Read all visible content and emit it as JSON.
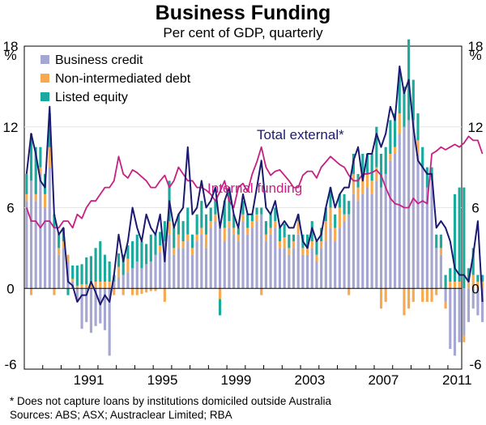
{
  "chart_data": {
    "type": "bar",
    "title": "Business Funding",
    "subtitle": "Per cent of GDP, quarterly",
    "yunit": "%",
    "ylim": [
      -6,
      18
    ],
    "yticks": [
      "18",
      "12",
      "6",
      "0",
      "-6"
    ],
    "xlim": [
      1988,
      2011.75
    ],
    "xticks": [
      "1991",
      "1995",
      "1999",
      "2003",
      "2007",
      "2011"
    ],
    "start_year": 1988,
    "quarters_per_year": 4,
    "legend": [
      {
        "name": "Business credit",
        "color": "#a6a6d2"
      },
      {
        "name": "Non-intermediated debt",
        "color": "#f6a94e"
      },
      {
        "name": "Listed equity",
        "color": "#1aa99c"
      }
    ],
    "line_labels": {
      "total": "Total external*",
      "internal": "Internal funding"
    },
    "line_colors": {
      "total": "#1c1a70",
      "internal": "#c71f84"
    },
    "series": [
      {
        "name": "Business credit",
        "values": [
          6.5,
          8.0,
          6.5,
          8.5,
          6.0,
          9.0,
          4.5,
          2.5,
          3.0,
          2.0,
          0.5,
          -1.0,
          -3.0,
          -2.5,
          -3.3,
          -2.8,
          -2.6,
          -3.1,
          -5.0,
          0.5,
          0.8,
          1.0,
          1.2,
          1.5,
          2.0,
          1.5,
          1.8,
          2.0,
          2.5,
          2.7,
          3.5,
          4.0,
          2.5,
          3.0,
          3.0,
          3.5,
          2.5,
          3.5,
          4.0,
          3.0,
          4.5,
          5.0,
          4.5,
          3.5,
          4.5,
          4.0,
          3.5,
          5.0,
          4.0,
          4.5,
          5.0,
          5.5,
          3.5,
          4.0,
          4.5,
          3.0,
          3.0,
          2.5,
          3.0,
          4.0,
          2.5,
          2.5,
          3.0,
          2.0,
          3.0,
          3.5,
          4.5,
          3.5,
          4.5,
          5.0,
          5.5,
          7.0,
          6.5,
          7.0,
          7.5,
          7.0,
          8.0,
          7.5,
          8.5,
          9.5,
          10.0,
          11.5,
          12.0,
          12.5,
          12.5,
          10.0,
          9.0,
          7.5,
          8.0,
          3.0,
          2.5,
          -1.0,
          -4.5,
          -5.0,
          -4.0,
          -3.5,
          -2.5,
          -1.5,
          -2.0,
          -2.5
        ]
      },
      {
        "name": "Non-intermediated debt",
        "values": [
          0.5,
          -0.5,
          0.5,
          0.5,
          1.0,
          1.5,
          -0.5,
          0.5,
          0.5,
          0.5,
          0.2,
          0.2,
          0.3,
          0.3,
          0.4,
          0.5,
          0.5,
          0.5,
          0.5,
          -0.5,
          0.8,
          -0.5,
          1.0,
          -0.5,
          -0.5,
          -0.4,
          -0.3,
          -0.2,
          -0.2,
          0.5,
          -1.0,
          1.0,
          0.5,
          1.0,
          0.5,
          0.5,
          0.5,
          0.5,
          0.5,
          1.0,
          0.5,
          0.5,
          -0.8,
          1.0,
          0.5,
          0.5,
          0.5,
          0.5,
          0.5,
          0.5,
          0.5,
          -0.5,
          0.5,
          0.5,
          0.5,
          0.5,
          0.8,
          0.5,
          0.5,
          1.0,
          0.5,
          0.5,
          0.5,
          0.5,
          0.5,
          1.5,
          1.5,
          1.0,
          1.5,
          0.5,
          -0.5,
          1.5,
          1.0,
          1.5,
          1.0,
          1.0,
          1.0,
          -1.5,
          -1.0,
          0.5,
          0.5,
          1.5,
          -2.0,
          -1.5,
          -1.0,
          1.0,
          -1.0,
          -1.0,
          -1.0,
          -0.5,
          0.5,
          -0.5,
          0.5,
          0.5,
          0.5,
          -0.5,
          0.5,
          1.0,
          0.5,
          0.5
        ]
      },
      {
        "name": "Listed equity",
        "values": [
          1.5,
          3.5,
          3.5,
          1.5,
          1.5,
          2.5,
          1.0,
          1.0,
          1.0,
          -0.5,
          1.0,
          1.5,
          1.5,
          2.0,
          2.0,
          2.5,
          3.0,
          2.0,
          1.5,
          0.5,
          1.0,
          1.5,
          1.0,
          2.0,
          2.0,
          2.0,
          1.5,
          2.0,
          1.5,
          1.0,
          1.5,
          3.0,
          1.5,
          1.5,
          1.5,
          2.0,
          1.0,
          1.5,
          2.0,
          1.5,
          1.0,
          1.0,
          -1.2,
          2.0,
          2.5,
          1.0,
          0.5,
          1.0,
          1.0,
          0.5,
          0.5,
          0.5,
          1.0,
          1.0,
          1.0,
          1.0,
          1.0,
          1.0,
          0.5,
          0.5,
          1.0,
          1.0,
          1.5,
          1.0,
          1.0,
          1.0,
          1.5,
          1.0,
          1.0,
          1.5,
          1.0,
          1.5,
          1.0,
          1.5,
          1.5,
          2.0,
          3.0,
          2.5,
          2.0,
          2.5,
          2.5,
          3.0,
          3.0,
          6.0,
          3.0,
          2.0,
          1.5,
          1.5,
          1.0,
          1.0,
          1.0,
          1.0,
          1.0,
          6.5,
          7.0,
          7.5,
          1.0,
          2.0,
          0.5,
          0.5
        ]
      },
      {
        "name": "Total external*",
        "values": [
          8.5,
          11.5,
          10.0,
          8.0,
          7.5,
          13.5,
          5.5,
          4.0,
          4.5,
          0.5,
          0.2,
          -1.0,
          -0.5,
          -0.5,
          0.5,
          -0.3,
          -1.2,
          -0.5,
          -1.0,
          1.0,
          4.0,
          2.0,
          3.5,
          6.0,
          4.5,
          3.5,
          5.5,
          4.5,
          4.0,
          5.5,
          2.0,
          6.5,
          4.5,
          5.5,
          6.0,
          10.5,
          5.5,
          6.0,
          8.0,
          6.0,
          6.5,
          7.5,
          4.5,
          6.5,
          7.5,
          5.5,
          4.5,
          7.0,
          5.5,
          5.5,
          7.5,
          9.5,
          6.0,
          5.5,
          6.5,
          4.5,
          5.0,
          4.5,
          4.5,
          5.5,
          3.5,
          3.0,
          4.5,
          3.5,
          4.0,
          6.0,
          7.5,
          6.0,
          7.0,
          7.5,
          7.5,
          9.5,
          10.5,
          8.0,
          10.0,
          10.0,
          11.5,
          10.5,
          11.5,
          13.5,
          12.5,
          16.5,
          14.5,
          15.5,
          12.0,
          9.5,
          9.0,
          8.5,
          8.5,
          4.5,
          5.0,
          4.5,
          3.5,
          1.5,
          1.0,
          1.0,
          0.5,
          2.5,
          5.0,
          -1.0
        ]
      },
      {
        "name": "Internal funding",
        "values": [
          6.0,
          5.0,
          5.0,
          4.5,
          5.0,
          5.0,
          4.5,
          4.5,
          5.0,
          5.0,
          4.5,
          5.5,
          5.2,
          6.0,
          6.5,
          6.5,
          7.0,
          7.5,
          7.5,
          8.0,
          9.8,
          8.5,
          8.2,
          8.8,
          8.6,
          8.3,
          8.0,
          7.5,
          7.5,
          8.0,
          8.4,
          7.5,
          8.0,
          9.0,
          8.5,
          8.0,
          8.0,
          7.5,
          7.5,
          7.3,
          7.0,
          6.5,
          7.2,
          8.0,
          6.5,
          6.0,
          7.5,
          7.8,
          7.2,
          8.5,
          9.4,
          10.5,
          9.0,
          8.4,
          8.7,
          8.8,
          8.4,
          8.0,
          7.5,
          7.5,
          8.4,
          8.7,
          8.7,
          8.2,
          9.0,
          9.4,
          9.8,
          9.5,
          9.2,
          9.0,
          8.4,
          8.0,
          8.0,
          8.5,
          8.5,
          8.6,
          8.8,
          8.4,
          7.5,
          6.7,
          6.3,
          6.2,
          6.0,
          6.0,
          6.7,
          6.3,
          6.5,
          6.3,
          10.0,
          10.2,
          10.5,
          10.3,
          10.5,
          10.7,
          10.5,
          10.8,
          11.3,
          11.0,
          11.0,
          10.0
        ]
      }
    ]
  },
  "footnote": "*   Does not capture loans by institutions domiciled outside Australia",
  "sources": "Sources: ABS; ASX; Austraclear Limited; RBA"
}
